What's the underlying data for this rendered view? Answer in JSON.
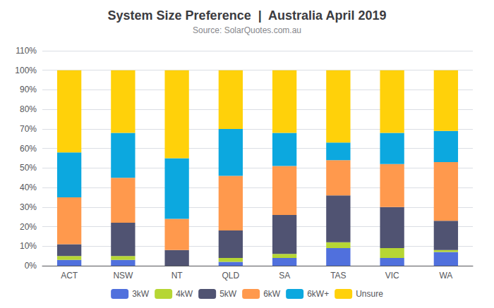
{
  "chart_data": {
    "type": "bar",
    "stacked": true,
    "title": "System Size Preference  |  Australia April 2019",
    "subtitle": "Source: SolarQuotes.com.au",
    "categories": [
      "ACT",
      "NSW",
      "NT",
      "QLD",
      "SA",
      "TAS",
      "VIC",
      "WA"
    ],
    "series": [
      {
        "name": "3kW",
        "values": [
          3,
          3,
          0,
          2,
          4,
          9,
          4,
          7
        ]
      },
      {
        "name": "4kW",
        "values": [
          2,
          2,
          0,
          2,
          2,
          3,
          5,
          1
        ]
      },
      {
        "name": "5kW",
        "values": [
          6,
          17,
          8,
          14,
          20,
          24,
          21,
          15
        ]
      },
      {
        "name": "6kW",
        "values": [
          24,
          23,
          16,
          28,
          25,
          18,
          22,
          30
        ]
      },
      {
        "name": "6kW+",
        "values": [
          23,
          23,
          31,
          24,
          17,
          9,
          16,
          16
        ]
      },
      {
        "name": "Unsure",
        "values": [
          42,
          32,
          45,
          30,
          32,
          37,
          32,
          31
        ]
      }
    ],
    "ylim": [
      0,
      110
    ],
    "yticks": [
      {
        "value": 0,
        "label": "0%"
      },
      {
        "value": 10,
        "label": "10%"
      },
      {
        "value": 20,
        "label": "20%"
      },
      {
        "value": 30,
        "label": "30%"
      },
      {
        "value": 40,
        "label": "40%"
      },
      {
        "value": 50,
        "label": "50%"
      },
      {
        "value": 60,
        "label": "60%"
      },
      {
        "value": 70,
        "label": "70%"
      },
      {
        "value": 80,
        "label": "80%"
      },
      {
        "value": 90,
        "label": "90%"
      },
      {
        "value": 100,
        "label": "100%"
      },
      {
        "value": 110,
        "label": "110%"
      }
    ],
    "grid": true,
    "legend": "bottom"
  }
}
